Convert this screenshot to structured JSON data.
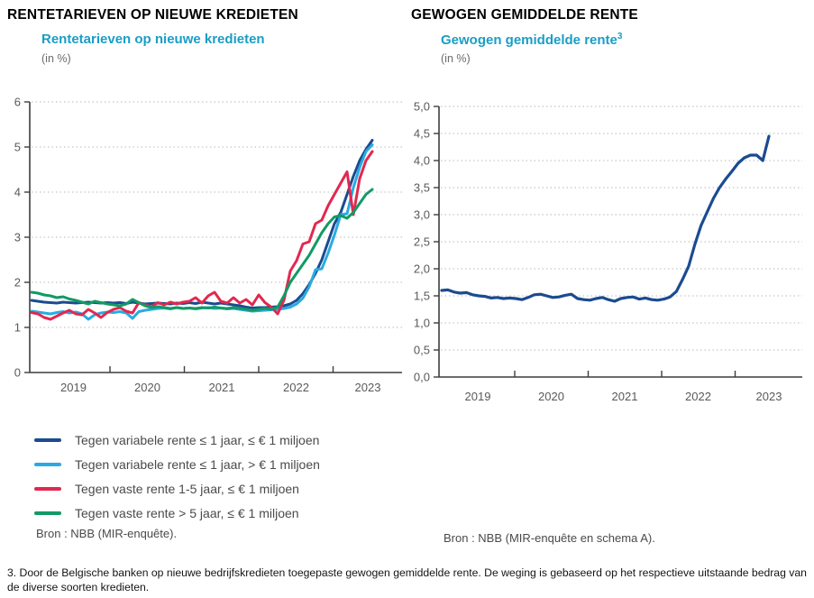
{
  "chart_data": [
    {
      "type": "line",
      "title": "RENTETARIEVEN OP NIEUWE KREDIETEN",
      "subtitle": "Rentetarieven op nieuwe kredieten",
      "unit": "(in %)",
      "x_frequency": "monthly",
      "x_start": "2018-12",
      "x_end": "2023-06",
      "x_tick_labels": [
        "2019",
        "2020",
        "2021",
        "2022",
        "2023"
      ],
      "ylim": [
        0,
        6
      ],
      "y_tick_values": [
        0,
        1,
        2,
        3,
        4,
        5,
        6
      ],
      "y_tick_labels": [
        "0",
        "1",
        "2",
        "3",
        "4",
        "5",
        "6"
      ],
      "grid": "dotted-horizontal",
      "legend_position": "below",
      "source": "Bron : NBB (MIR-enquête).",
      "series": [
        {
          "name": "Tegen variabele rente ≤ 1 jaar, ≤ € 1 miljoen",
          "color": "#1b4b90",
          "values": [
            1.6,
            1.58,
            1.56,
            1.55,
            1.54,
            1.56,
            1.55,
            1.54,
            1.55,
            1.56,
            1.55,
            1.54,
            1.55,
            1.54,
            1.55,
            1.53,
            1.56,
            1.54,
            1.52,
            1.53,
            1.54,
            1.53,
            1.52,
            1.54,
            1.53,
            1.55,
            1.53,
            1.56,
            1.54,
            1.52,
            1.54,
            1.52,
            1.5,
            1.48,
            1.45,
            1.43,
            1.44,
            1.44,
            1.45,
            1.46,
            1.48,
            1.52,
            1.6,
            1.75,
            1.95,
            2.2,
            2.5,
            2.9,
            3.3,
            3.55,
            3.95,
            4.35,
            4.7,
            4.95,
            5.15
          ]
        },
        {
          "name": "Tegen variabele rente ≤ 1 jaar, > € 1 miljoen",
          "color": "#29abe2",
          "values": [
            1.36,
            1.34,
            1.32,
            1.3,
            1.33,
            1.35,
            1.32,
            1.34,
            1.3,
            1.18,
            1.28,
            1.32,
            1.34,
            1.33,
            1.35,
            1.32,
            1.2,
            1.35,
            1.38,
            1.4,
            1.42,
            1.43,
            1.41,
            1.44,
            1.42,
            1.43,
            1.41,
            1.43,
            1.44,
            1.42,
            1.43,
            1.41,
            1.42,
            1.4,
            1.38,
            1.36,
            1.37,
            1.38,
            1.39,
            1.4,
            1.42,
            1.45,
            1.52,
            1.65,
            1.9,
            2.28,
            2.3,
            2.65,
            3.05,
            3.5,
            3.52,
            4.1,
            4.55,
            4.9,
            5.05
          ]
        },
        {
          "name": "Tegen vaste rente 1-5 jaar, ≤ € 1 miljoen",
          "color": "#e22850",
          "values": [
            1.33,
            1.3,
            1.22,
            1.18,
            1.25,
            1.32,
            1.38,
            1.3,
            1.28,
            1.4,
            1.32,
            1.22,
            1.33,
            1.4,
            1.44,
            1.36,
            1.32,
            1.55,
            1.5,
            1.46,
            1.55,
            1.5,
            1.56,
            1.52,
            1.56,
            1.58,
            1.66,
            1.54,
            1.7,
            1.78,
            1.58,
            1.54,
            1.66,
            1.54,
            1.62,
            1.5,
            1.72,
            1.55,
            1.45,
            1.3,
            1.6,
            2.25,
            2.48,
            2.85,
            2.9,
            3.3,
            3.38,
            3.7,
            3.95,
            4.2,
            4.45,
            3.5,
            4.3,
            4.7,
            4.9
          ]
        },
        {
          "name": "Tegen vaste rente > 5 jaar, ≤ € 1 miljoen",
          "color": "#129a64",
          "values": [
            1.78,
            1.76,
            1.72,
            1.7,
            1.66,
            1.68,
            1.63,
            1.6,
            1.56,
            1.52,
            1.58,
            1.55,
            1.52,
            1.5,
            1.48,
            1.52,
            1.62,
            1.55,
            1.48,
            1.44,
            1.46,
            1.44,
            1.42,
            1.44,
            1.42,
            1.43,
            1.42,
            1.44,
            1.43,
            1.45,
            1.43,
            1.42,
            1.44,
            1.42,
            1.4,
            1.38,
            1.4,
            1.42,
            1.4,
            1.45,
            1.7,
            2.0,
            2.2,
            2.4,
            2.6,
            2.85,
            3.1,
            3.3,
            3.45,
            3.48,
            3.42,
            3.55,
            3.75,
            3.95,
            4.06
          ]
        }
      ]
    },
    {
      "type": "line",
      "title": "GEWOGEN GEMIDDELDE RENTE",
      "subtitle": "Gewogen gemiddelde rente",
      "subtitle_sup": "3",
      "unit": "(in %)",
      "x_frequency": "monthly",
      "x_start": "2019-01",
      "x_end": "2023-06",
      "x_tick_labels": [
        "2019",
        "2020",
        "2021",
        "2022",
        "2023"
      ],
      "ylim": [
        0,
        5
      ],
      "y_tick_values": [
        0,
        0.5,
        1,
        1.5,
        2,
        2.5,
        3,
        3.5,
        4,
        4.5,
        5
      ],
      "y_tick_labels": [
        "0,0",
        "0,5",
        "1,0",
        "1,5",
        "2,0",
        "2,5",
        "3,0",
        "3,5",
        "4,0",
        "4,5",
        "5,0"
      ],
      "grid": "dotted-horizontal",
      "legend_position": "none",
      "source": "Bron : NBB (MIR-enquête en schema A).",
      "series": [
        {
          "name": "Gewogen gemiddelde rente",
          "color": "#1b4b90",
          "values": [
            1.6,
            1.61,
            1.57,
            1.55,
            1.56,
            1.52,
            1.5,
            1.49,
            1.46,
            1.47,
            1.45,
            1.46,
            1.45,
            1.43,
            1.47,
            1.52,
            1.53,
            1.5,
            1.47,
            1.48,
            1.51,
            1.53,
            1.45,
            1.43,
            1.42,
            1.45,
            1.47,
            1.43,
            1.4,
            1.45,
            1.47,
            1.48,
            1.44,
            1.46,
            1.43,
            1.42,
            1.44,
            1.48,
            1.58,
            1.8,
            2.05,
            2.45,
            2.8,
            3.05,
            3.3,
            3.5,
            3.66,
            3.8,
            3.95,
            4.05,
            4.1,
            4.1,
            4.0,
            4.45
          ]
        }
      ]
    }
  ],
  "footnote": "3. Door de Belgische banken op nieuwe bedrijfskredieten toegepaste gewogen gemiddelde rente. De weging is gebaseerd op het respectieve uitstaande bedrag van de diverse soorten kredieten."
}
